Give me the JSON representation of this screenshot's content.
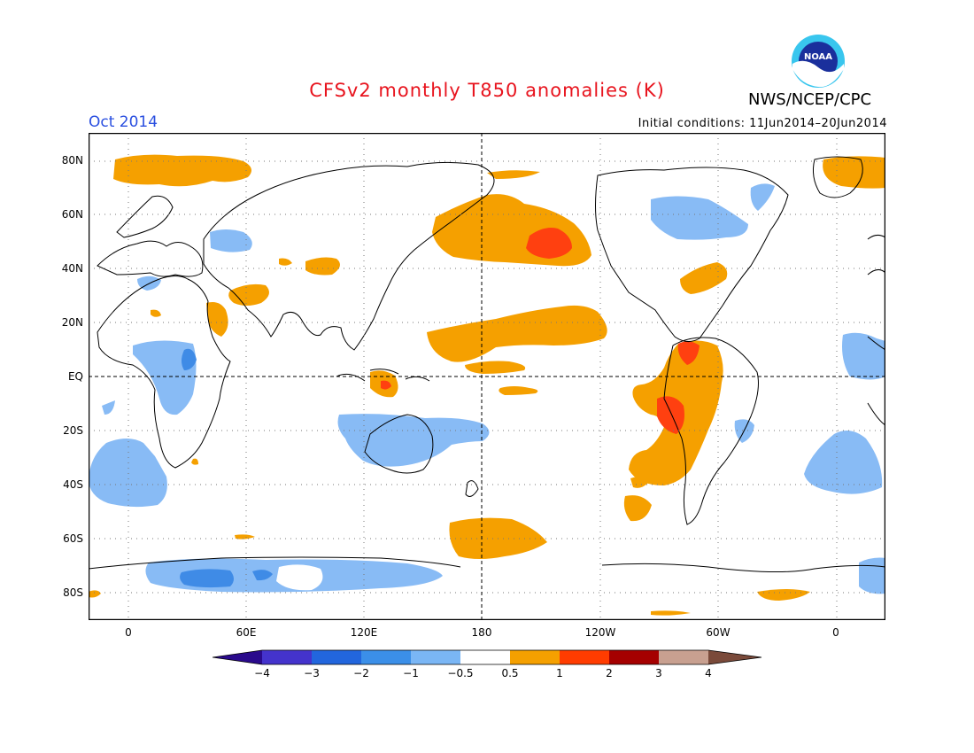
{
  "header": {
    "title": "CFSv2 monthly T850 anomalies (K)",
    "org": "NWS/NCEP/CPC",
    "logo_text": "NOAA",
    "month": "Oct 2014",
    "initial_conditions": "Initial conditions: 11Jun2014–20Jun2014"
  },
  "axes": {
    "lat_labels": [
      "80N",
      "60N",
      "40N",
      "20N",
      "EQ",
      "20S",
      "40S",
      "60S",
      "80S"
    ],
    "lon_labels": [
      "0",
      "60E",
      "120E",
      "180",
      "120W",
      "60W",
      "0"
    ]
  },
  "colorbar": {
    "labels": [
      "−4",
      "−3",
      "−2",
      "−1",
      "−0.5",
      "0.5",
      "1",
      "2",
      "3",
      "4"
    ],
    "colors": [
      "#2a0a8c",
      "#4433cc",
      "#2266dd",
      "#3b8fe8",
      "#7ab6f5",
      "#ffffff",
      "#f5a000",
      "#ff3c00",
      "#a50000",
      "#c8a090",
      "#7a4a3a"
    ]
  },
  "map": {
    "colors": {
      "neg_light": "#88bbf5",
      "neg_mid": "#3f8be6",
      "pos_light": "#f5a000",
      "pos_mid": "#ff4010",
      "coast": "#000000"
    }
  }
}
